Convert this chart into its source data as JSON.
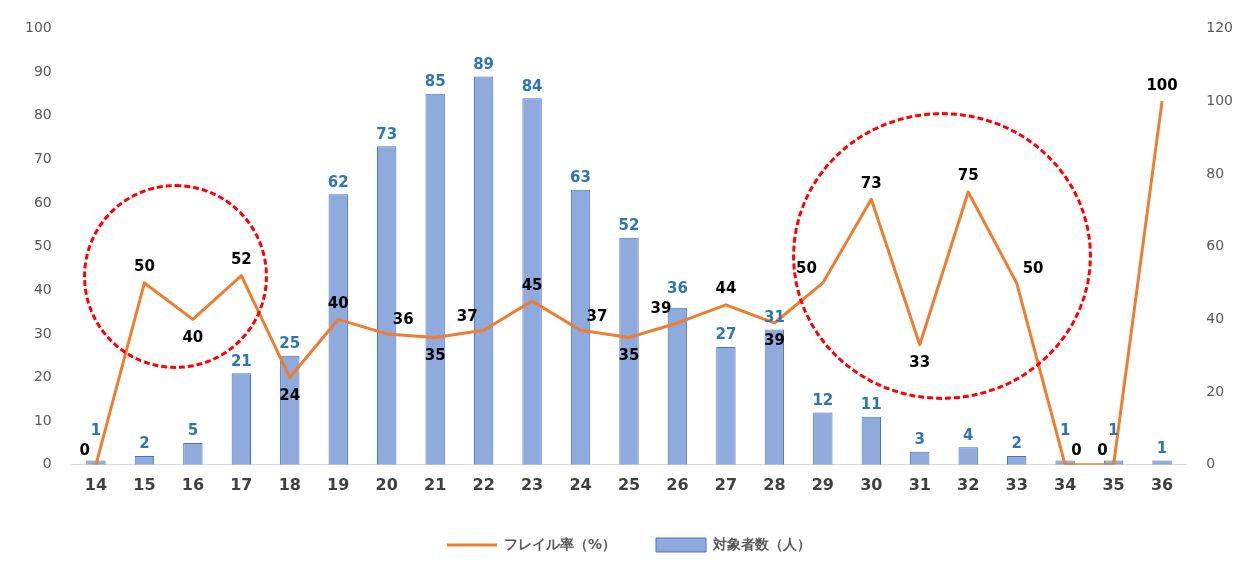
{
  "chart_data": {
    "type": "bar",
    "categories": [
      "14",
      "15",
      "16",
      "17",
      "18",
      "19",
      "20",
      "21",
      "22",
      "23",
      "24",
      "25",
      "26",
      "27",
      "28",
      "29",
      "30",
      "31",
      "32",
      "33",
      "34",
      "35",
      "36"
    ],
    "series": [
      {
        "name": "対象者数（人）",
        "color": "#8faadc",
        "values": [
          1,
          2,
          5,
          21,
          25,
          62,
          73,
          85,
          89,
          84,
          63,
          52,
          36,
          27,
          31,
          12,
          11,
          3,
          4,
          2,
          1,
          1,
          1
        ]
      },
      {
        "name": "フレイル率（%）",
        "type": "line",
        "axis": "y2",
        "color": "#ed7d31",
        "values": [
          0,
          50,
          40,
          52,
          24,
          40,
          36,
          35,
          37,
          45,
          37,
          35,
          39,
          44,
          39,
          50,
          73,
          33,
          75,
          50,
          0,
          0,
          100
        ]
      }
    ],
    "ylim": [
      0,
      100
    ],
    "yticks": [
      0,
      10,
      20,
      30,
      40,
      50,
      60,
      70,
      80,
      90,
      100
    ],
    "y2lim": [
      0,
      120
    ],
    "y2ticks": [
      0,
      20,
      40,
      60,
      80,
      100,
      120
    ],
    "grid": false,
    "legend": "bottom",
    "marker": "none",
    "line_style": "solid",
    "data_labels": true
  }
}
